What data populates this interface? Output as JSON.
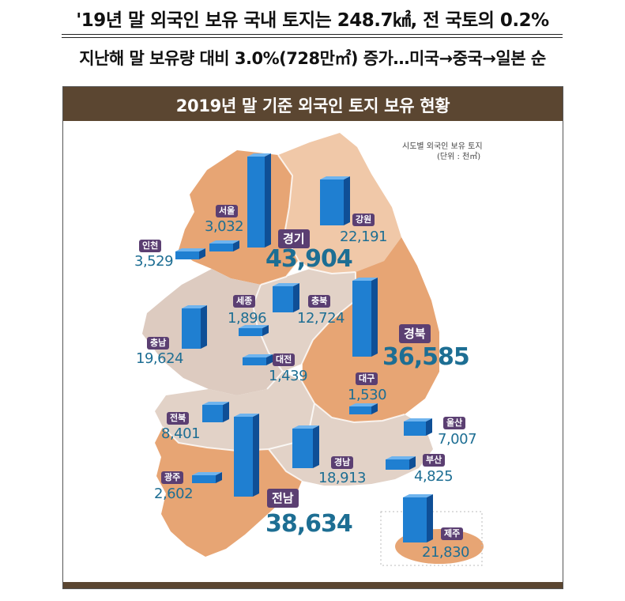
{
  "headline_1": "'19년 말 외국인 보유 국내 토지는 248.7㎢, 전 국토의 0.2%",
  "headline_2": "지난해 말 보유량 대비 3.0%(728만㎡) 증가…미국→중국→일본 순",
  "panel_title": "2019년 말 기준 외국인 토지 보유 현황",
  "legend": {
    "title": "시도별 외국인 보유 토지",
    "unit": "(단위 : 천㎡)"
  },
  "colors": {
    "header": "#5b4631",
    "label_bg": "#5b3f72",
    "value_text": "#1d6e93",
    "bar_front": "#1f7fd1",
    "bar_side": "#0f4f96",
    "bar_top": "#6fb4ee",
    "province_orange": "#e7a574",
    "province_light": "#e2d2c7",
    "province_peach": "#f0c8a8"
  },
  "regions": [
    {
      "name": "서울",
      "value": "3,032"
    },
    {
      "name": "인천",
      "value": "3,529"
    },
    {
      "name": "경기",
      "value": "43,904"
    },
    {
      "name": "강원",
      "value": "22,191"
    },
    {
      "name": "세종",
      "value": "1,896"
    },
    {
      "name": "충북",
      "value": "12,724"
    },
    {
      "name": "충남",
      "value": "19,624"
    },
    {
      "name": "대전",
      "value": "1,439"
    },
    {
      "name": "경북",
      "value": "36,585"
    },
    {
      "name": "대구",
      "value": "1,530"
    },
    {
      "name": "전북",
      "value": "8,401"
    },
    {
      "name": "울산",
      "value": "7,007"
    },
    {
      "name": "경남",
      "value": "18,913"
    },
    {
      "name": "부산",
      "value": "4,825"
    },
    {
      "name": "광주",
      "value": "2,602"
    },
    {
      "name": "전남",
      "value": "38,634"
    },
    {
      "name": "제주",
      "value": "21,830"
    }
  ]
}
